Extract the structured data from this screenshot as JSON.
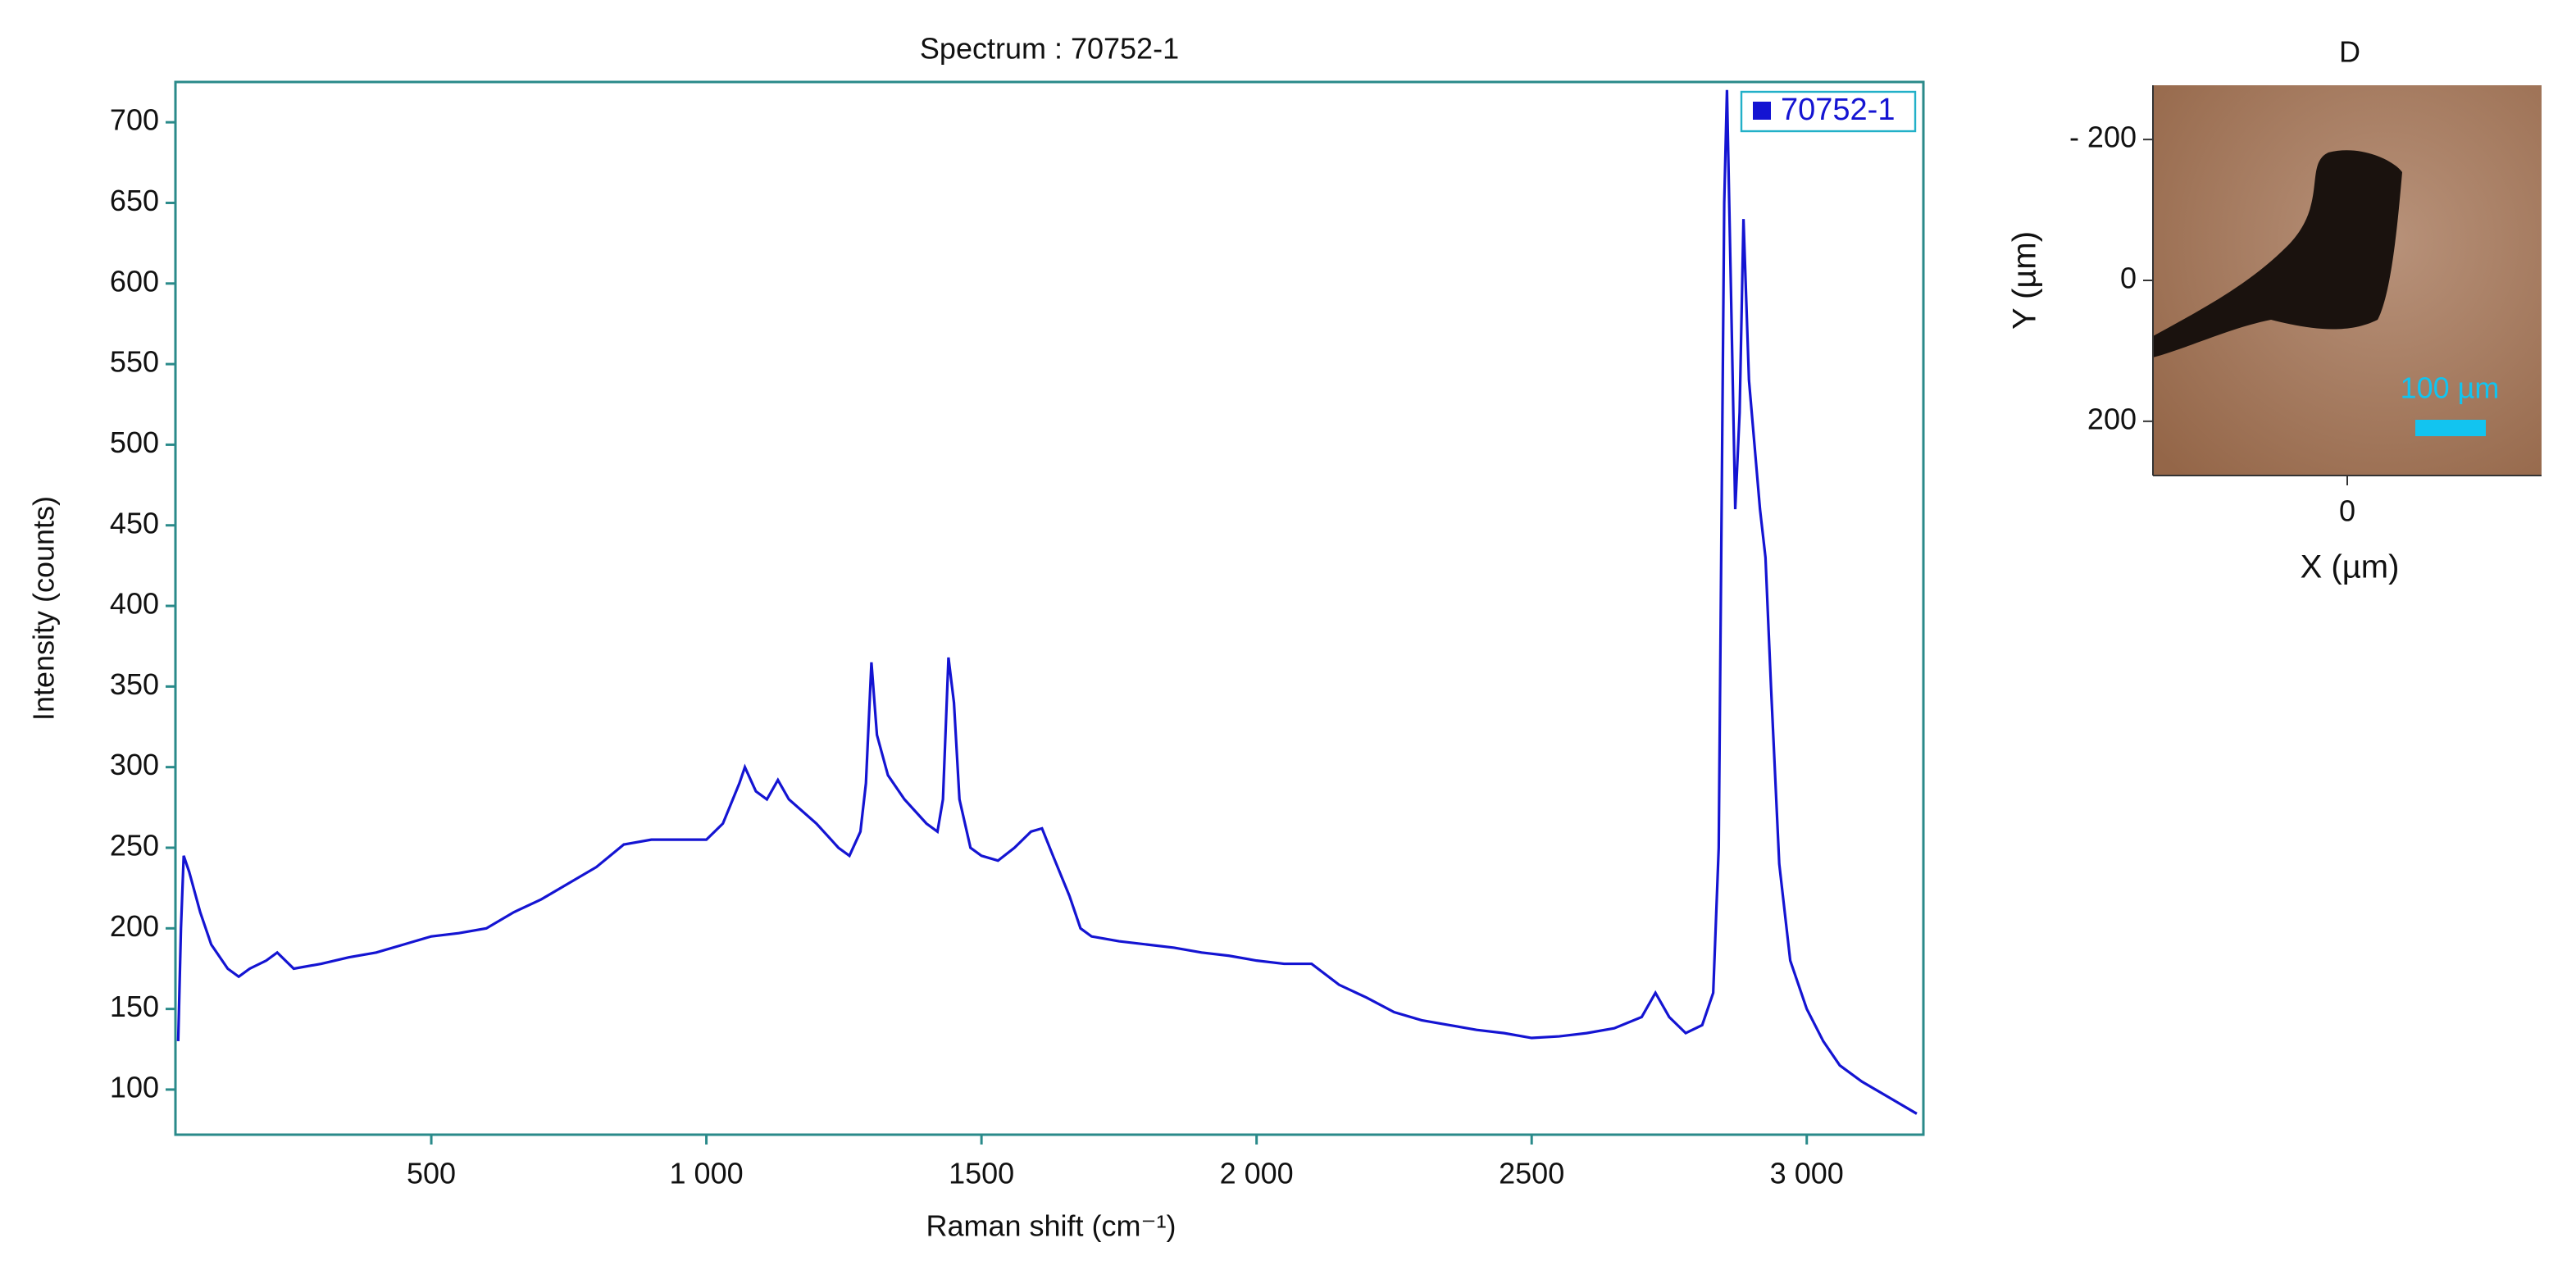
{
  "chart_data": [
    {
      "type": "line",
      "title": "Spectrum : 70752-1",
      "xlabel": "Raman shift (cm⁻¹)",
      "ylabel": "Intensity (counts)",
      "x": [
        40,
        45,
        50,
        60,
        80,
        100,
        130,
        150,
        170,
        200,
        220,
        250,
        300,
        350,
        400,
        450,
        500,
        550,
        600,
        650,
        700,
        750,
        800,
        850,
        900,
        950,
        1000,
        1030,
        1060,
        1070,
        1090,
        1110,
        1130,
        1150,
        1200,
        1240,
        1260,
        1280,
        1290,
        1300,
        1310,
        1330,
        1360,
        1400,
        1420,
        1430,
        1440,
        1450,
        1460,
        1480,
        1500,
        1530,
        1560,
        1590,
        1610,
        1630,
        1660,
        1680,
        1700,
        1750,
        1800,
        1850,
        1900,
        1950,
        2000,
        2050,
        2100,
        2150,
        2200,
        2250,
        2300,
        2350,
        2400,
        2450,
        2500,
        2550,
        2600,
        2650,
        2700,
        2725,
        2750,
        2780,
        2810,
        2830,
        2840,
        2850,
        2855,
        2862,
        2870,
        2878,
        2885,
        2895,
        2905,
        2915,
        2925,
        2935,
        2950,
        2970,
        3000,
        3030,
        3060,
        3100,
        3150,
        3200
      ],
      "series": [
        {
          "name": "70752-1",
          "color": "#1414d2",
          "values": [
            130,
            200,
            245,
            235,
            210,
            190,
            175,
            170,
            175,
            180,
            185,
            175,
            178,
            182,
            185,
            190,
            195,
            197,
            200,
            210,
            218,
            228,
            238,
            252,
            255,
            255,
            255,
            265,
            290,
            300,
            285,
            280,
            292,
            280,
            265,
            250,
            245,
            260,
            290,
            365,
            320,
            295,
            280,
            265,
            260,
            280,
            368,
            340,
            280,
            250,
            245,
            242,
            250,
            260,
            262,
            245,
            220,
            200,
            195,
            192,
            190,
            188,
            185,
            183,
            180,
            178,
            178,
            165,
            157,
            148,
            143,
            140,
            137,
            135,
            132,
            133,
            135,
            138,
            145,
            160,
            145,
            135,
            140,
            160,
            250,
            650,
            720,
            600,
            460,
            520,
            640,
            540,
            500,
            460,
            430,
            350,
            240,
            180,
            150,
            130,
            115,
            105,
            95,
            85
          ]
        }
      ],
      "xlim": [
        35,
        3212
      ],
      "ylim": [
        72,
        725
      ],
      "xticks": [
        500,
        {
          "value": 1000,
          "label": "1 000"
        },
        1500,
        {
          "value": 2000,
          "label": "2 000"
        },
        2500,
        {
          "value": 3000,
          "label": "3 000"
        }
      ],
      "yticks": [
        100,
        150,
        200,
        250,
        300,
        350,
        400,
        450,
        500,
        550,
        600,
        650,
        700
      ],
      "legend": "top-right"
    },
    {
      "type": "image",
      "title": "D",
      "xlabel": "X (µm)",
      "ylabel": "Y (µm)",
      "xlim": [
        -277,
        277
      ],
      "ylim": [
        -277,
        277
      ],
      "y_inverted": true,
      "xticks": [
        0
      ],
      "yticks": [
        {
          "value": -200,
          "label": "- 200"
        },
        0,
        200
      ],
      "scale_bar": "100 µm"
    }
  ]
}
